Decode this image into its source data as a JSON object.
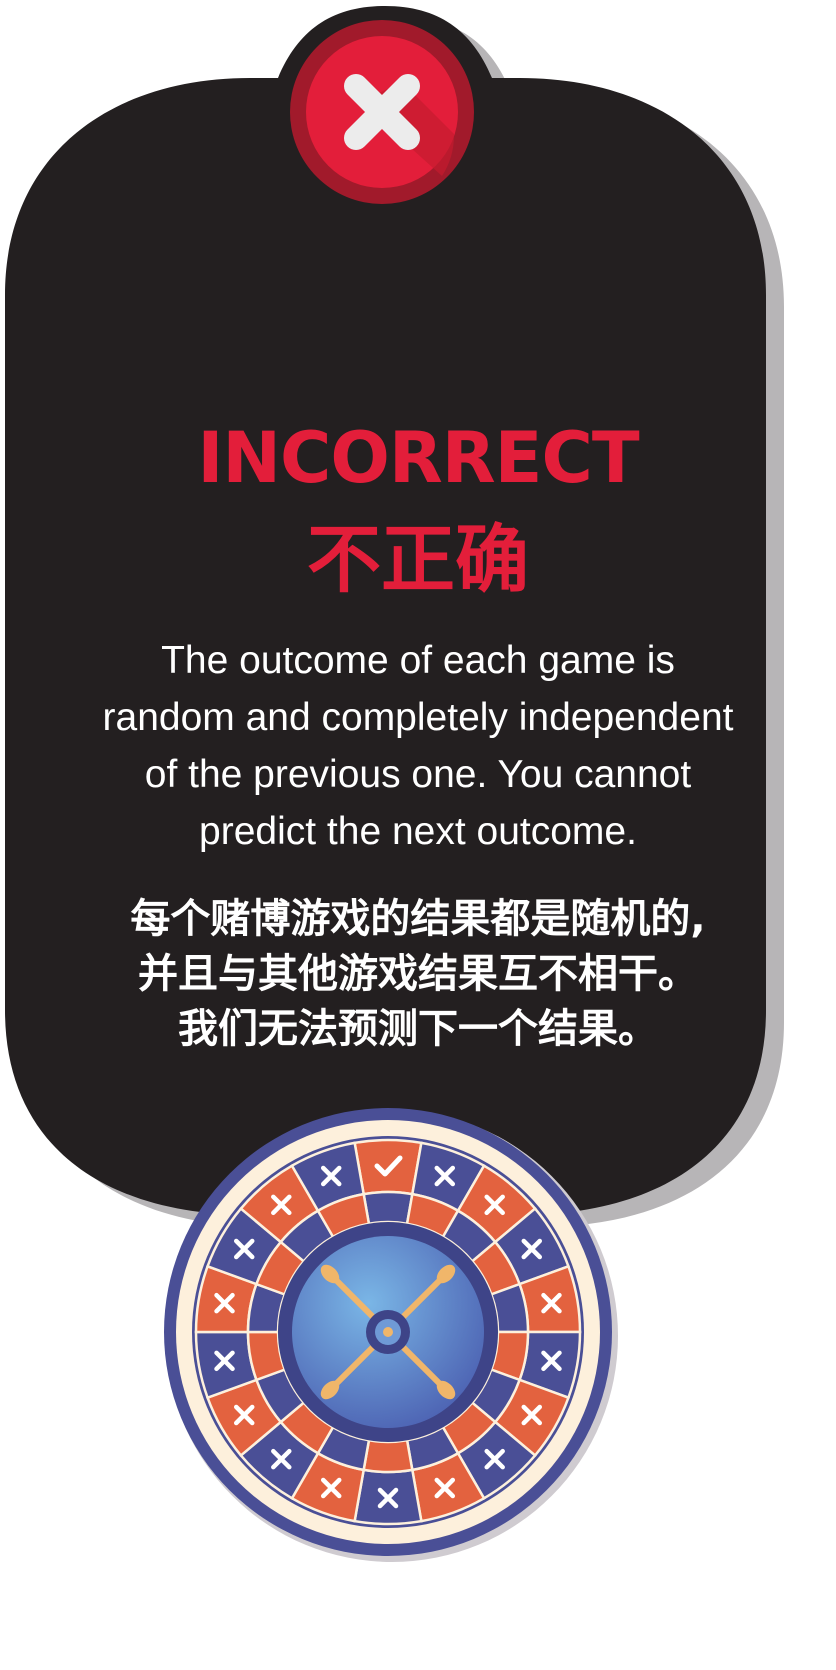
{
  "colors": {
    "card_background": "#231f20",
    "card_shadow": "#b7b5b7",
    "accent_red": "#e31e3a",
    "text_white": "#ffffff",
    "wheel_navy": "#4a4f96",
    "wheel_orange": "#e3623f",
    "wheel_cream": "#fdf0dc",
    "wheel_blue_center": "#5b86c8",
    "wheel_gold": "#f0b66a"
  },
  "icons": {
    "status": "close-x-icon",
    "wheel_pockets": "x-mark-icon",
    "winning_pocket": "check-mark-icon"
  },
  "result": {
    "title_en": "INCORRECT",
    "title_zh": "不正确"
  },
  "message": {
    "en_lines": [
      "The outcome of each game is",
      "random and completely independent",
      "of the previous one. You cannot",
      "predict the next outcome."
    ],
    "zh_lines": [
      "每个赌博游戏的结果都是随机的,",
      "并且与其他游戏结果互不相干。",
      "我们无法预测下一个结果。"
    ]
  }
}
